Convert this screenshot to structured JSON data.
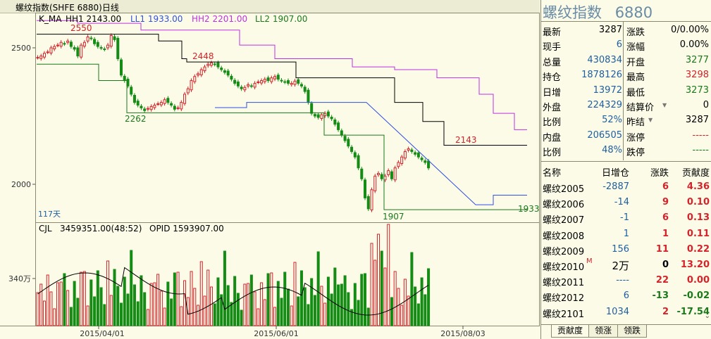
{
  "window": {
    "title": "螺纹指数(SHFE 6880)日线"
  },
  "price_panel": {
    "indicator": "K_MA",
    "hh1": "HH1 2143.00",
    "ll1": "LL1 1933.00",
    "hh2": "HH2 2201.00",
    "ll2": "LL2 1907.00",
    "y_label_2500": "2500",
    "y_label_2000": "2000",
    "days": "117天",
    "mark_2550": "2550",
    "mark_2448": "2448",
    "mark_2262": "2262",
    "mark_2143": "2143",
    "mark_1907": "1907",
    "mark_1933": "1933"
  },
  "volume_panel": {
    "indicator": "CJL",
    "value": "3459351.00(48:52)",
    "opid": "OPID 1593907.00",
    "y_label": "340万"
  },
  "x_axis": [
    "2015/04/01",
    "2015/06/01",
    "2015/08/03"
  ],
  "colors": {
    "up": "#d4232a",
    "down": "#158c15",
    "hh1": "#000000",
    "ll1": "#3050e0",
    "hh2": "#c030e0",
    "ll2": "#1a7a1a"
  },
  "quote": {
    "name": "螺纹指数",
    "code": "6880",
    "rows": [
      {
        "l1": "最新",
        "v1": "3287",
        "v1c": "#000",
        "l2": "涨跌",
        "v2": "0/0.00%",
        "v2c": "#000"
      },
      {
        "l1": "现手",
        "v1": "6",
        "v1c": "#2060a0",
        "l2": "涨幅",
        "v2": "0.00%",
        "v2c": "#000"
      },
      {
        "l1": "总量",
        "v1": "430834",
        "v1c": "#2060a0",
        "l2": "开盘",
        "v2": "3277",
        "v2c": "#1a7a1a"
      },
      {
        "l1": "持仓",
        "v1": "1878126",
        "v1c": "#2060a0",
        "l2": "最高",
        "v2": "3298",
        "v2c": "#d4232a"
      },
      {
        "l1": "日增",
        "v1": "13972",
        "v1c": "#2060a0",
        "l2": "最低",
        "v2": "3273",
        "v2c": "#1a7a1a"
      },
      {
        "l1": "外盘",
        "v1": "224329",
        "v1c": "#2060a0",
        "l2": "结算价",
        "v2": "0",
        "v2c": "#000"
      },
      {
        "l1": "比例",
        "v1": "52%",
        "v1c": "#2060a0",
        "l2": "昨结",
        "v2": "3287",
        "v2c": "#000"
      },
      {
        "l1": "内盘",
        "v1": "206505",
        "v1c": "#2060a0",
        "l2": "涨停",
        "v2": "-----",
        "v2c": "#d4232a"
      },
      {
        "l1": "比例",
        "v1": "48%",
        "v1c": "#2060a0",
        "l2": "跌停",
        "v2": "-----",
        "v2c": "#1a7a1a"
      }
    ]
  },
  "contracts": {
    "headers": [
      "名称",
      "日增仓",
      "涨跌",
      "贡献度"
    ],
    "rows": [
      {
        "name": "螺纹2005",
        "a": "-2887",
        "b": "6",
        "c": "4.36",
        "bc": "#d4232a",
        "cc": "#d4232a"
      },
      {
        "name": "螺纹2006",
        "a": "-14",
        "b": "9",
        "c": "0.10",
        "bc": "#d4232a",
        "cc": "#d4232a"
      },
      {
        "name": "螺纹2007",
        "a": "-1",
        "b": "6",
        "c": "0.13",
        "bc": "#d4232a",
        "cc": "#d4232a"
      },
      {
        "name": "螺纹2008",
        "a": "1",
        "b": "1",
        "c": "0.11",
        "bc": "#d4232a",
        "cc": "#d4232a"
      },
      {
        "name": "螺纹2009",
        "a": "156",
        "b": "11",
        "c": "0.22",
        "bc": "#d4232a",
        "cc": "#d4232a"
      },
      {
        "name": "螺纹2010",
        "tag": "M",
        "a": "2万",
        "b": "0",
        "c": "13.20",
        "bc": "#000",
        "cc": "#d4232a"
      },
      {
        "name": "螺纹2011",
        "a": "----",
        "b": "22",
        "c": "0.00",
        "bc": "#d4232a",
        "cc": "#d4232a"
      },
      {
        "name": "螺纹2012",
        "a": "6",
        "b": "-13",
        "c": "-0.02",
        "bc": "#1a7a1a",
        "cc": "#1a7a1a"
      },
      {
        "name": "螺纹2101",
        "a": "1034",
        "b": "2",
        "c": "-17.54",
        "bc": "#d4232a",
        "cc": "#1a7a1a"
      }
    ]
  },
  "tabs": [
    "贡献度",
    "领涨",
    "领跌"
  ]
}
